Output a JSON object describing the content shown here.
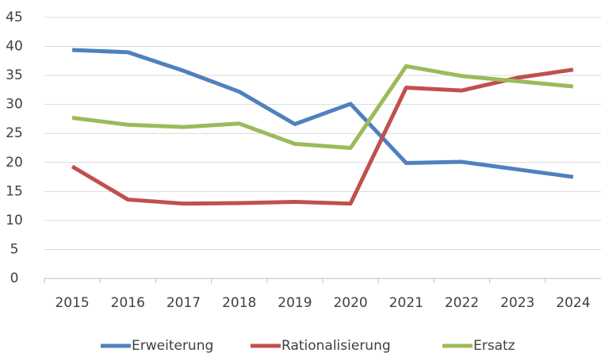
{
  "chart_data": {
    "type": "line",
    "categories": [
      "2015",
      "2016",
      "2017",
      "2018",
      "2019",
      "2020",
      "2021",
      "2022",
      "2023",
      "2024"
    ],
    "series": [
      {
        "name": "Erweiterung",
        "color": "#4f81bd",
        "values": [
          39.4,
          39.0,
          35.8,
          32.2,
          26.6,
          30.1,
          19.9,
          20.1,
          18.8,
          17.5
        ]
      },
      {
        "name": "Rationalisierung",
        "color": "#c0504d",
        "values": [
          19.3,
          13.6,
          12.9,
          13.0,
          13.2,
          12.9,
          32.9,
          32.4,
          34.6,
          36.0
        ]
      },
      {
        "name": "Ersatz",
        "color": "#9bbb59",
        "values": [
          27.7,
          26.5,
          26.1,
          26.7,
          23.2,
          22.5,
          36.6,
          34.9,
          34.0,
          33.1
        ]
      }
    ],
    "ylim": [
      0,
      45
    ],
    "yticks": [
      0,
      5,
      10,
      15,
      20,
      25,
      30,
      35,
      40,
      45
    ],
    "grid": true,
    "legend": "bottom"
  }
}
